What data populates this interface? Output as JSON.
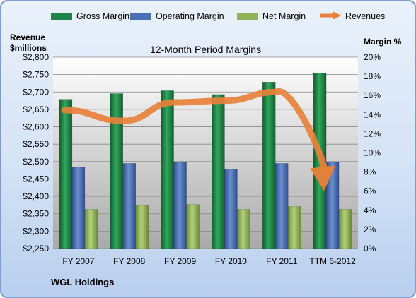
{
  "chart_data": {
    "type": "bar",
    "title": "12-Month Period Margins",
    "categories": [
      "FY 2007",
      "FY 2008",
      "FY 2009",
      "FY 2010",
      "FY 2011",
      "TTM 6-2012"
    ],
    "series": [
      {
        "name": "Gross Margin",
        "axis": "right",
        "values": [
          15.6,
          16.2,
          16.5,
          16.1,
          17.4,
          18.3
        ],
        "color": "#1e8449"
      },
      {
        "name": "Operating Margin",
        "axis": "right",
        "values": [
          8.5,
          8.9,
          9.0,
          8.3,
          8.9,
          9.0
        ],
        "color": "#4a6fb5"
      },
      {
        "name": "Net Margin",
        "axis": "right",
        "values": [
          4.1,
          4.5,
          4.6,
          4.1,
          4.4,
          4.1
        ],
        "color": "#8fb35a"
      },
      {
        "name": "Revenues",
        "axis": "left",
        "type": "line",
        "values": [
          2648,
          2617,
          2670,
          2675,
          2700,
          2432
        ],
        "color": "#e8813a"
      }
    ],
    "y_left": {
      "label_line1": "Revenue",
      "label_line2": "$millions",
      "min": 2250,
      "max": 2800,
      "step": 50,
      "ticks": [
        "$2,250",
        "$2,300",
        "$2,350",
        "$2,400",
        "$2,450",
        "$2,500",
        "$2,550",
        "$2,600",
        "$2,650",
        "$2,700",
        "$2,750",
        "$2,800"
      ]
    },
    "y_right": {
      "label": "Margin  %",
      "min": 0,
      "max": 20,
      "step": 2,
      "ticks": [
        "0%",
        "2%",
        "4%",
        "6%",
        "8%",
        "10%",
        "12%",
        "14%",
        "16%",
        "18%",
        "20%"
      ]
    },
    "legend_position": "top",
    "grid": true,
    "footer": "WGL Holdings"
  }
}
